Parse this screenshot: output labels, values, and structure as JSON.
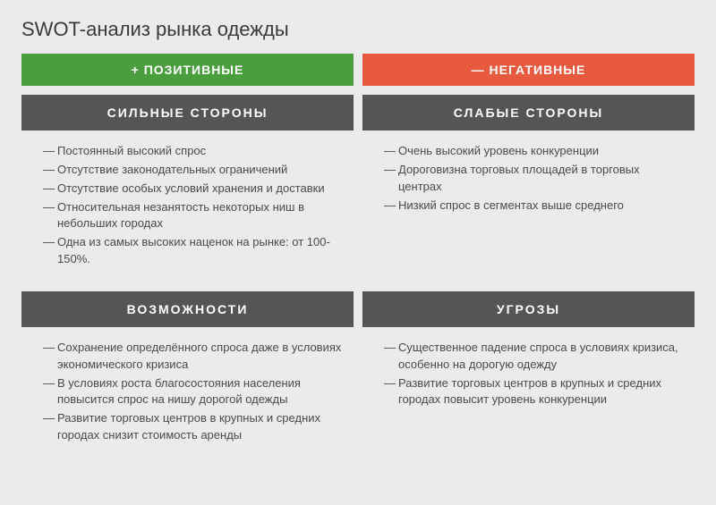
{
  "title": "SWOT-анализ рынка одежды",
  "colors": {
    "positive_bg": "#4a9e3e",
    "negative_bg": "#e85a3f",
    "header_bg": "#555555",
    "page_bg": "#ebebeb",
    "text": "#4a4a4a"
  },
  "top": {
    "positive": "+ ПОЗИТИВНЫЕ",
    "negative": "— НЕГАТИВНЫЕ"
  },
  "quadrants": {
    "strengths": {
      "header": "СИЛЬНЫЕ  СТОРОНЫ",
      "items": [
        "Постоянный высокий спрос",
        "Отсутствие законодательных ограничений",
        "Отсутствие особых условий хранения и доставки",
        "Относительная незанятость некоторых ниш в небольших городах",
        "Одна из самых высоких наценок на рынке: от 100-150%."
      ]
    },
    "weaknesses": {
      "header": "СЛАБЫЕ  СТОРОНЫ",
      "items": [
        "Очень высокий уровень конкуренции",
        "Дороговизна торговых площадей в торговых центрах",
        "Низкий спрос в сегментах выше среднего"
      ]
    },
    "opportunities": {
      "header": "ВОЗМОЖНОСТИ",
      "items": [
        "Сохранение определённого спроса даже в условиях экономического кризиса",
        "В условиях роста благосостояния населения повысится спрос на нишу дорогой одежды",
        "Развитие торговых центров в крупных и средних городах снизит стоимость аренды"
      ]
    },
    "threats": {
      "header": "УГРОЗЫ",
      "items": [
        "Существенное падение спроса в условиях кризиса, особенно на дорогую одежду",
        "Развитие торговых центров в крупных и средних городах повысит уровень конкуренции"
      ]
    }
  }
}
